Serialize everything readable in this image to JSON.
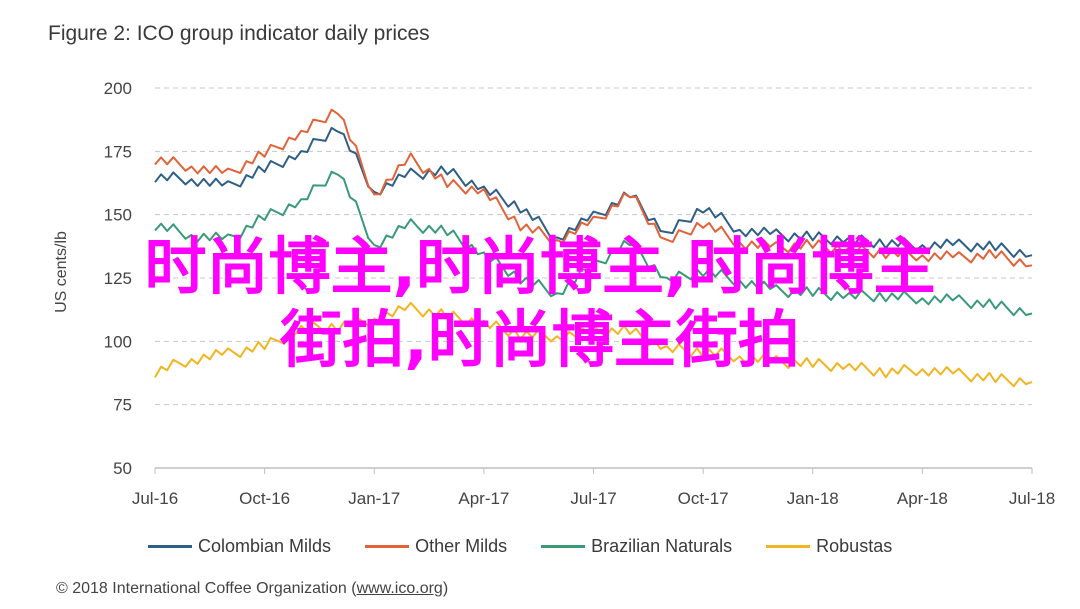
{
  "title": "Figure 2: ICO group indicator daily prices",
  "footer": {
    "prefix": "© 2018 International Coffee Organization (",
    "url": "www.ico.org",
    "suffix": ")"
  },
  "overlay": {
    "line1": "时尚博主,时尚博主,时尚博主",
    "line2": "街拍,时尚博主街拍"
  },
  "chart_data": {
    "type": "line",
    "title": "Figure 2: ICO group indicator daily prices",
    "xlabel": "",
    "ylabel": "US cents/lb",
    "ylim": [
      50,
      200
    ],
    "yticks": [
      50,
      75,
      100,
      125,
      150,
      175,
      200
    ],
    "xticks": [
      "Jul-16",
      "Oct-16",
      "Jan-17",
      "Apr-17",
      "Jul-17",
      "Oct-17",
      "Jan-18",
      "Apr-18",
      "Jul-18"
    ],
    "grid": true,
    "legend_position": "bottom",
    "x": [
      "Jul-16",
      "Aug-16",
      "Sep-16",
      "Oct-16",
      "Nov-16",
      "Dec-16",
      "Jan-17",
      "Feb-17",
      "Mar-17",
      "Apr-17",
      "May-17",
      "Jun-17",
      "Jul-17",
      "Aug-17",
      "Sep-17",
      "Oct-17",
      "Nov-17",
      "Dec-17",
      "Jan-18",
      "Feb-18",
      "Mar-18",
      "Apr-18",
      "May-18",
      "Jun-18",
      "Jul-18"
    ],
    "series": [
      {
        "name": "Colombian Milds",
        "color": "#2f5f86",
        "values": [
          165,
          164,
          161,
          168,
          174,
          185,
          159,
          166,
          167,
          160,
          153,
          141,
          149,
          158,
          142,
          153,
          144,
          142,
          141,
          140,
          139,
          138,
          138,
          137,
          134
        ]
      },
      {
        "name": "Other Milds",
        "color": "#e2623a",
        "values": [
          172,
          169,
          166,
          174,
          182,
          192,
          158,
          172,
          162,
          159,
          146,
          140,
          147,
          158,
          139,
          147,
          139,
          137,
          138,
          136,
          135,
          134,
          133,
          134,
          130
        ]
      },
      {
        "name": "Brazilian Naturals",
        "color": "#3a9a78",
        "values": [
          146,
          142,
          140,
          149,
          155,
          168,
          138,
          146,
          143,
          134,
          125,
          119,
          130,
          139,
          124,
          128,
          124,
          120,
          119,
          118,
          118,
          117,
          116,
          114,
          111
        ]
      },
      {
        "name": "Robustas",
        "color": "#f0b520",
        "values": [
          88,
          93,
          95,
          98,
          105,
          106,
          109,
          113,
          110,
          107,
          103,
          102,
          104,
          104,
          97,
          96,
          94,
          92,
          91,
          90,
          88,
          89,
          87,
          85,
          84
        ]
      }
    ]
  }
}
